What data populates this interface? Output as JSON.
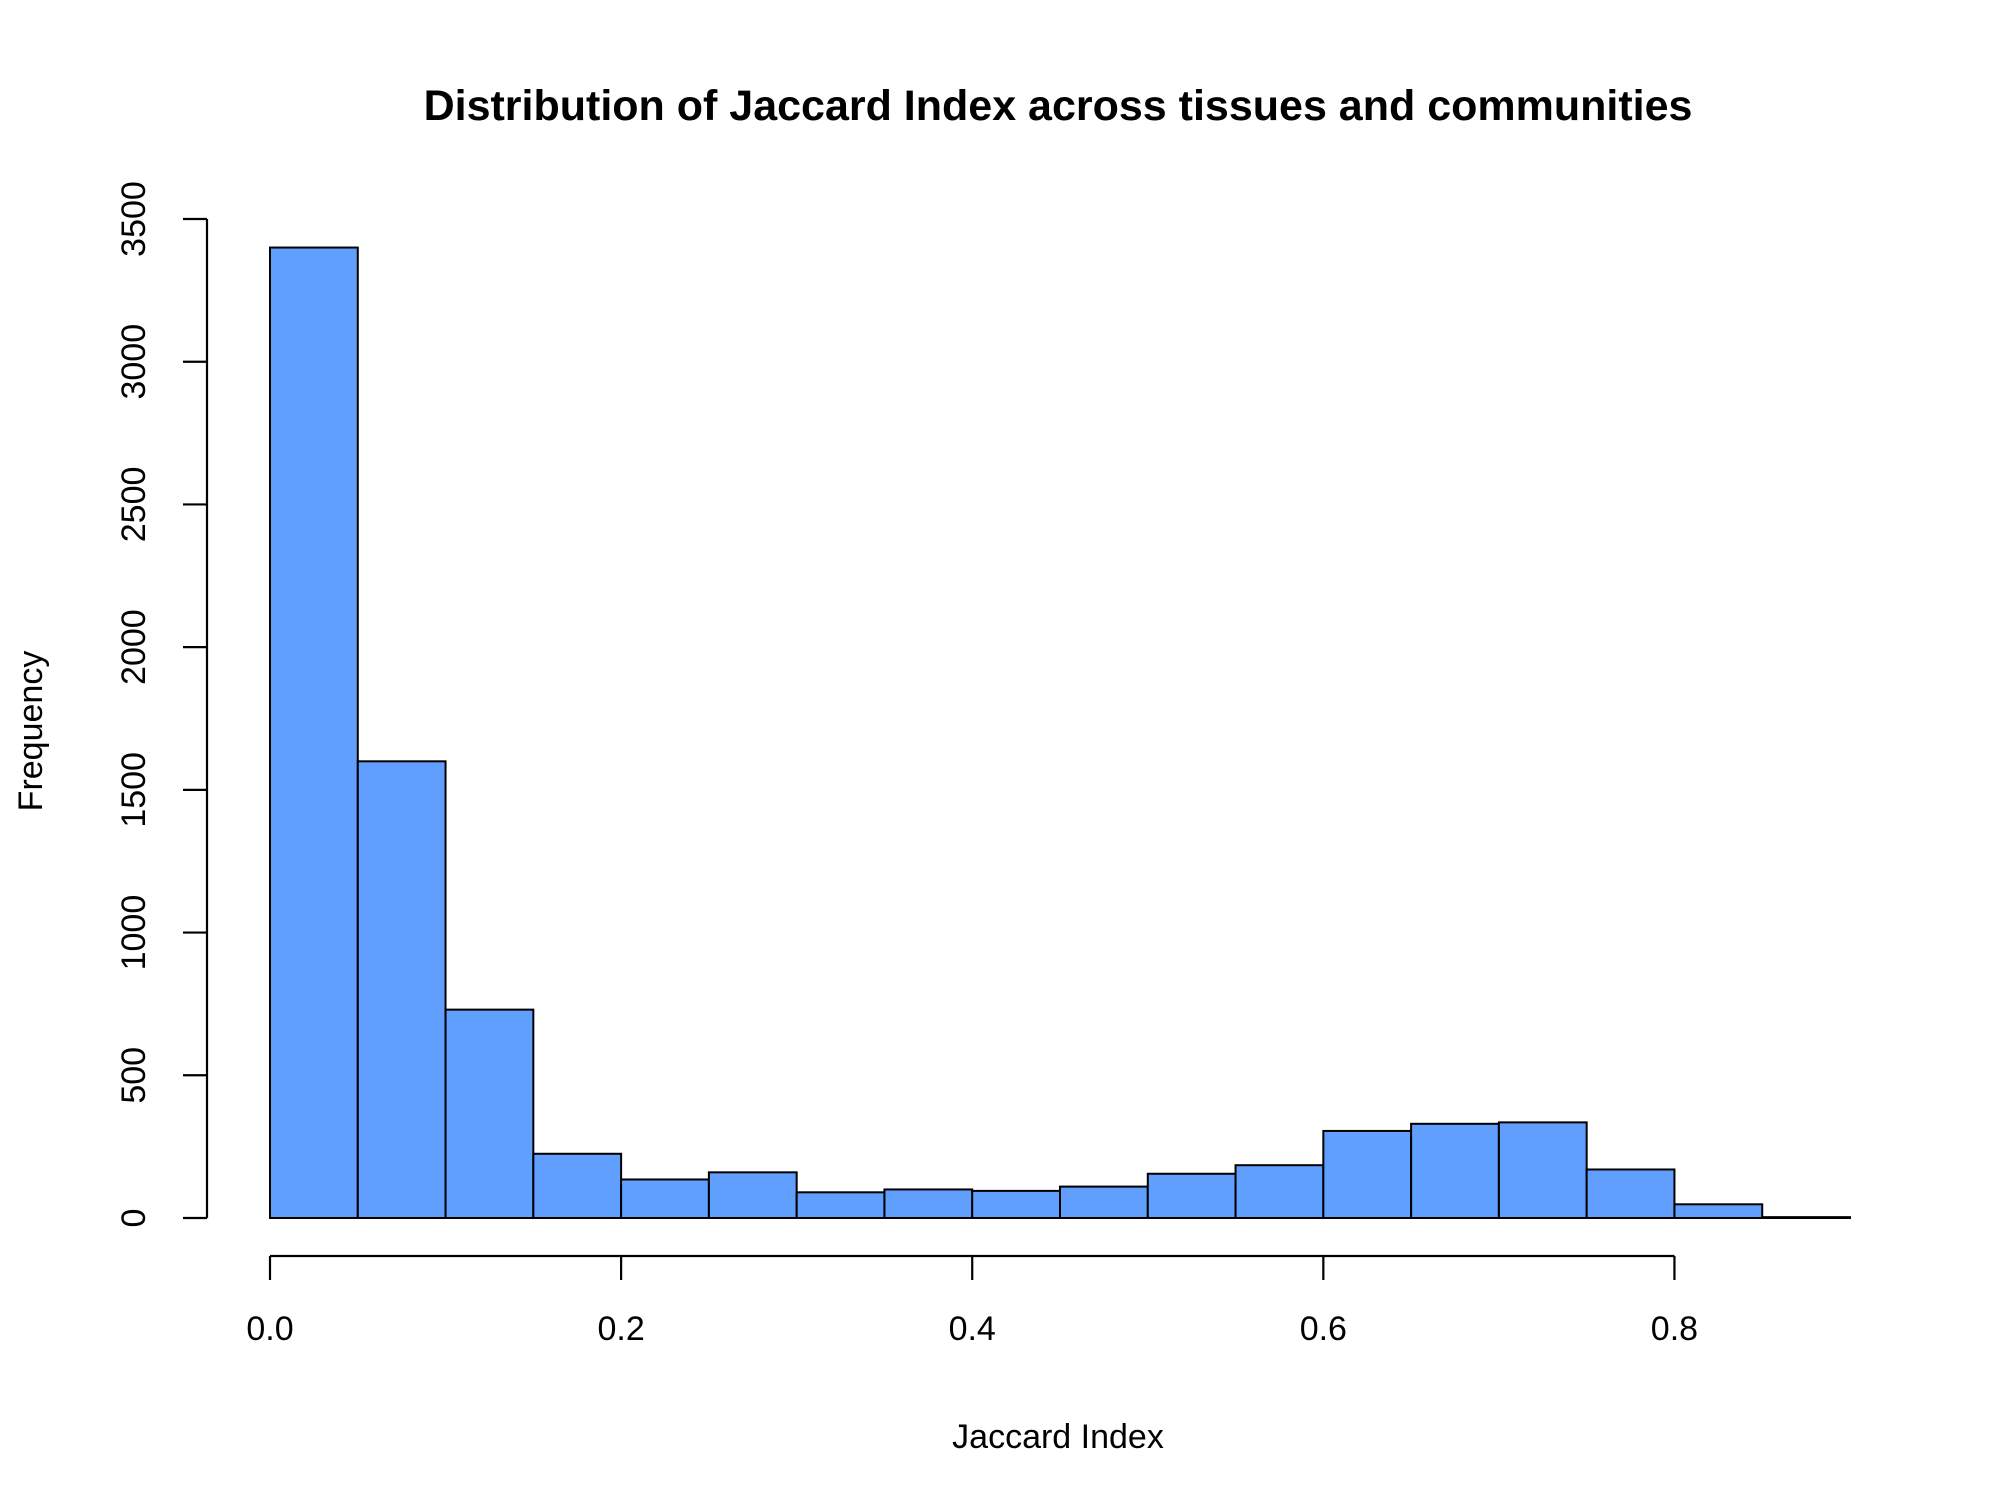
{
  "chart_data": {
    "type": "bar",
    "subtype": "histogram",
    "title": "Distribution of Jaccard Index across tissues and communities",
    "xlabel": "Jaccard Index",
    "ylabel": "Frequency",
    "xlim": [
      0,
      0.9
    ],
    "ylim": [
      0,
      3500
    ],
    "x_ticks": [
      0,
      0.2,
      0.4,
      0.6,
      0.8
    ],
    "x_tick_labels": [
      "0.0",
      "0.2",
      "0.4",
      "0.6",
      "0.8"
    ],
    "y_ticks": [
      0,
      500,
      1000,
      1500,
      2000,
      2500,
      3000,
      3500
    ],
    "y_tick_labels": [
      "0",
      "500",
      "1000",
      "1500",
      "2000",
      "2500",
      "3000",
      "3500"
    ],
    "bin_edges": [
      0,
      0.05,
      0.1,
      0.15,
      0.2,
      0.25,
      0.3,
      0.35,
      0.4,
      0.45,
      0.5,
      0.55,
      0.6,
      0.65,
      0.7,
      0.75,
      0.8,
      0.85,
      0.9
    ],
    "values": [
      3400,
      1600,
      730,
      225,
      135,
      160,
      90,
      100,
      95,
      110,
      155,
      185,
      305,
      330,
      335,
      170,
      48,
      3
    ],
    "grid": false,
    "legend": "none",
    "bar_color": "#619ffe",
    "bar_edge_color": "#000000"
  }
}
